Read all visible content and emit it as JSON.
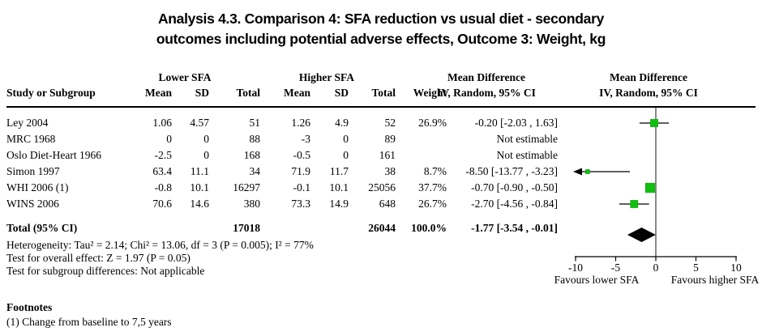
{
  "title": {
    "line1": "Analysis 4.3.   Comparison 4: SFA reduction vs usual diet - secondary",
    "line2": "outcomes including potential adverse effects, Outcome 3: Weight, kg"
  },
  "table": {
    "group_headers": {
      "lower": "Lower SFA",
      "higher": "Higher SFA",
      "md_text": "Mean Difference",
      "md_graph": "Mean Difference"
    },
    "col_headers": {
      "study": "Study or Subgroup",
      "mean1": "Mean",
      "sd1": "SD",
      "total1": "Total",
      "mean2": "Mean",
      "sd2": "SD",
      "total2": "Total",
      "weight": "Weight",
      "ci_text": "IV, Random, 95% CI",
      "ci_graph": "IV, Random, 95% CI"
    },
    "studies": [
      {
        "name": "Ley 2004",
        "mean1": "1.06",
        "sd1": "4.57",
        "total1": "51",
        "mean2": "1.26",
        "sd2": "4.9",
        "total2": "52",
        "weight": "26.9%",
        "md": "-0.20 [-2.03 , 1.63]"
      },
      {
        "name": "MRC 1968",
        "mean1": "0",
        "sd1": "0",
        "total1": "88",
        "mean2": "-3",
        "sd2": "0",
        "total2": "89",
        "weight": "",
        "md": "Not estimable"
      },
      {
        "name": "Oslo Diet-Heart 1966",
        "mean1": "-2.5",
        "sd1": "0",
        "total1": "168",
        "mean2": "-0.5",
        "sd2": "0",
        "total2": "161",
        "weight": "",
        "md": "Not estimable"
      },
      {
        "name": "Simon 1997",
        "mean1": "63.4",
        "sd1": "11.1",
        "total1": "34",
        "mean2": "71.9",
        "sd2": "11.7",
        "total2": "38",
        "weight": "8.7%",
        "md": "-8.50 [-13.77 , -3.23]"
      },
      {
        "name": "WHI 2006 (1)",
        "mean1": "-0.8",
        "sd1": "10.1",
        "total1": "16297",
        "mean2": "-0.1",
        "sd2": "10.1",
        "total2": "25056",
        "weight": "37.7%",
        "md": "-0.70 [-0.90 , -0.50]"
      },
      {
        "name": "WINS 2006",
        "mean1": "70.6",
        "sd1": "14.6",
        "total1": "380",
        "mean2": "73.3",
        "sd2": "14.9",
        "total2": "648",
        "weight": "26.7%",
        "md": "-2.70 [-4.56 , -0.84]"
      }
    ],
    "total": {
      "label": "Total (95% CI)",
      "total1": "17018",
      "total2": "26044",
      "weight": "100.0%",
      "md": "-1.77 [-3.54 , -0.01]"
    },
    "stats": [
      "Heterogeneity: Tau² = 2.14; Chi² = 13.06, df = 3 (P = 0.005); I² = 77%",
      "Test for overall effect: Z = 1.97 (P = 0.05)",
      "Test for subgroup differences: Not applicable"
    ]
  },
  "footnotes": {
    "heading": "Footnotes",
    "items": [
      "(1) Change from baseline to 7,5 years"
    ]
  },
  "colors": {
    "marker_green": "#0fc00f",
    "marker_green_border": "#0a9a0a",
    "diamond_black": "#000000",
    "zero_line_gray": "#8a8a8a",
    "axis_black": "#000000"
  },
  "chart_data": {
    "type": "scatter",
    "subtype": "forest-plot",
    "title": "Mean Difference, IV, Random, 95% CI",
    "xlabel_unit": "kg",
    "xlim": [
      -10,
      10
    ],
    "ticks": [
      -10,
      -5,
      0,
      5,
      10
    ],
    "favours_left": "Favours lower SFA",
    "favours_right": "Favours higher SFA",
    "points": [
      {
        "study": "Ley 2004",
        "md": -0.2,
        "ci_low": -2.03,
        "ci_high": 1.63,
        "weight_pct": 26.9
      },
      {
        "study": "Simon 1997",
        "md": -8.5,
        "ci_low": -13.77,
        "ci_high": -3.23,
        "weight_pct": 8.7
      },
      {
        "study": "WHI 2006 (1)",
        "md": -0.7,
        "ci_low": -0.9,
        "ci_high": -0.5,
        "weight_pct": 37.7
      },
      {
        "study": "WINS 2006",
        "md": -2.7,
        "ci_low": -4.56,
        "ci_high": -0.84,
        "weight_pct": 26.7
      }
    ],
    "pooled": {
      "md": -1.77,
      "ci_low": -3.54,
      "ci_high": -0.01
    }
  }
}
